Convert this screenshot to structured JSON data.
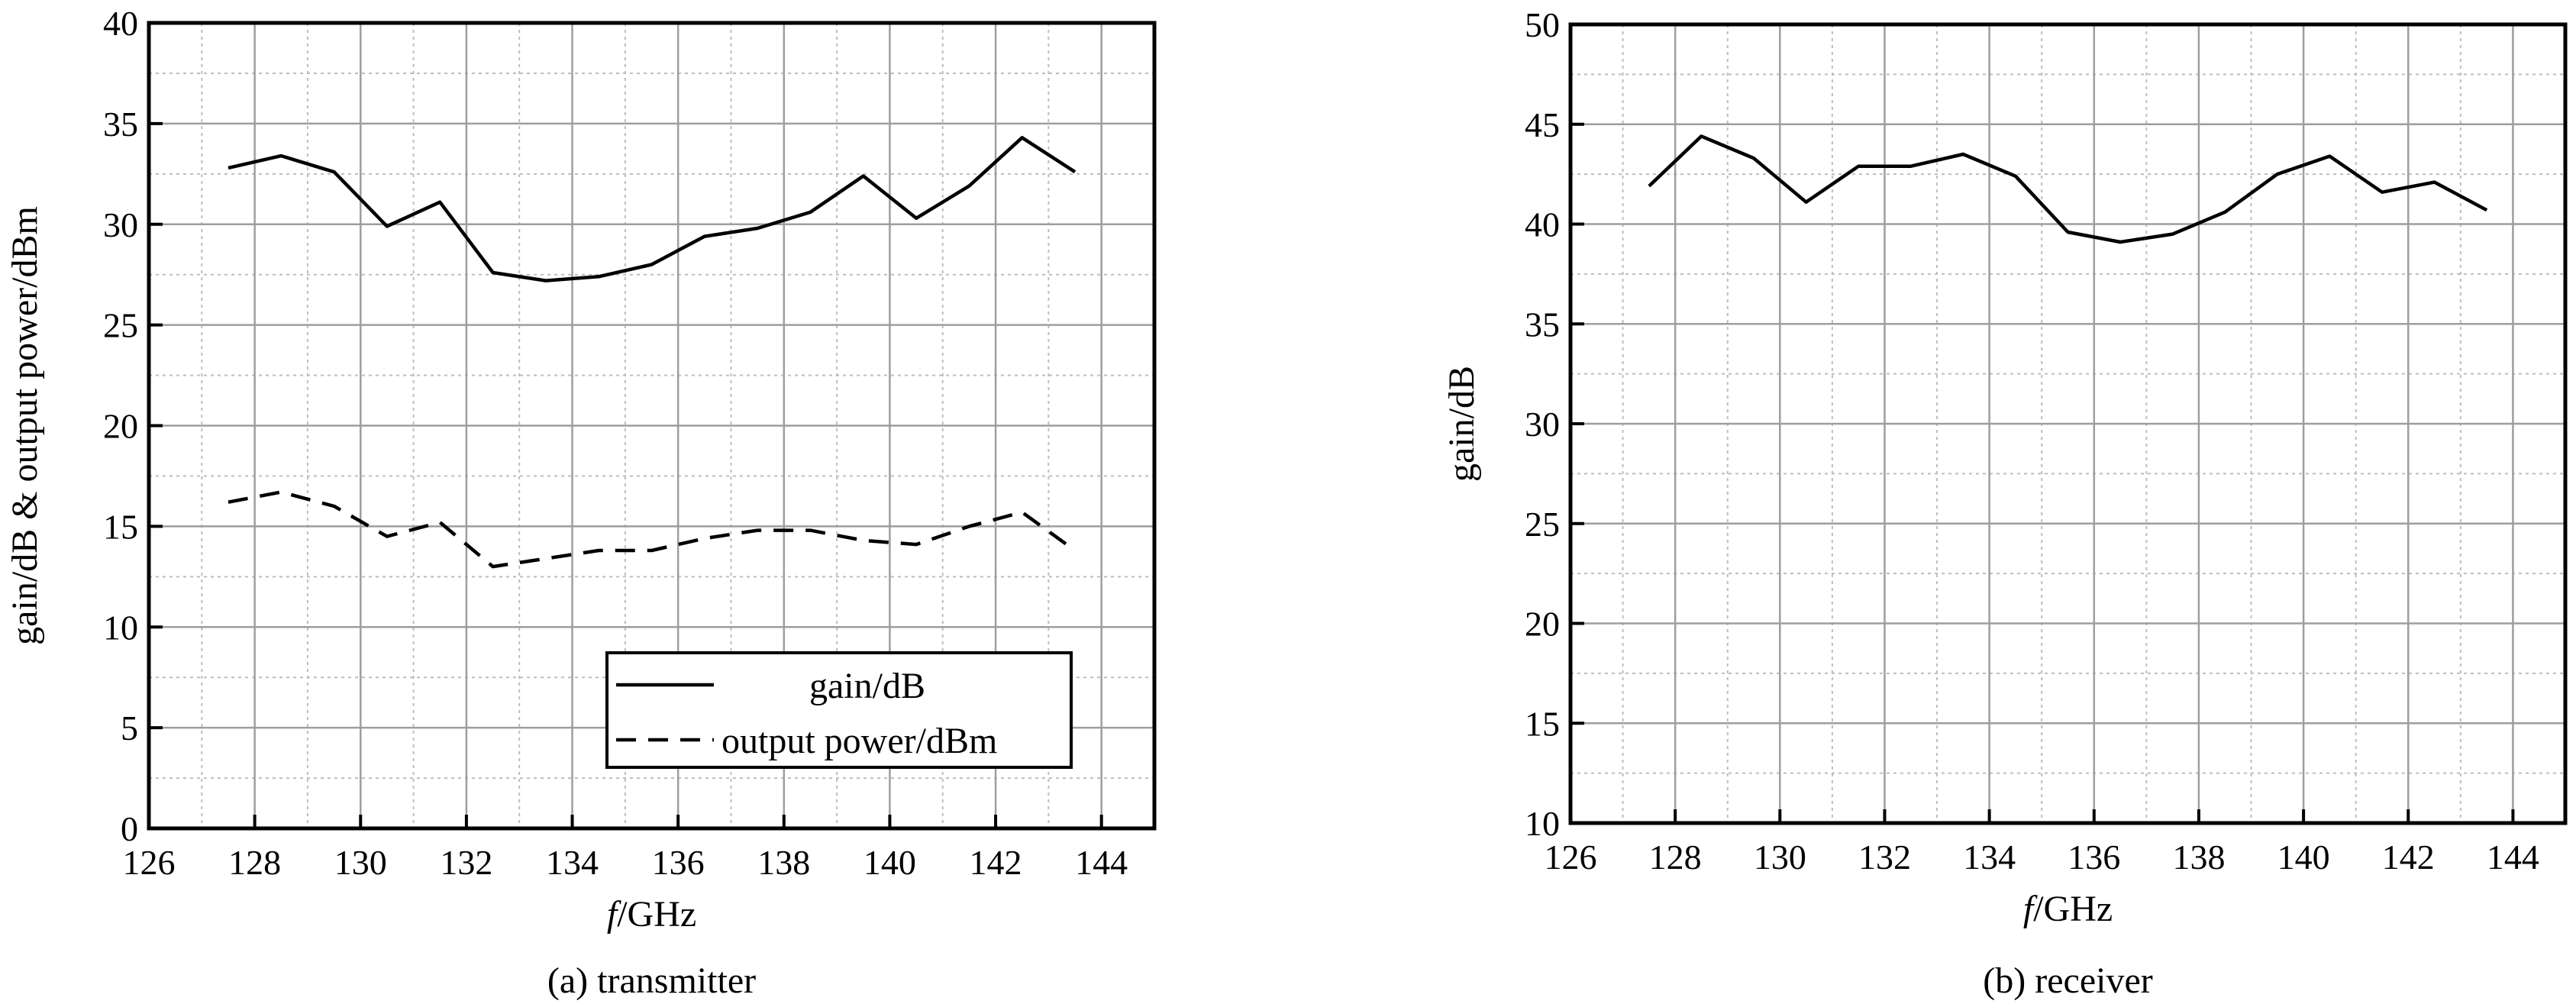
{
  "chart_data": [
    {
      "type": "line",
      "caption": "(a) transmitter",
      "xlabel_italic": "f",
      "xlabel_rest": "/GHz",
      "ylabel": "gain/dB & output power/dBm",
      "xlim": [
        126,
        145
      ],
      "ylim": [
        0,
        40
      ],
      "xticks": [
        126,
        128,
        130,
        132,
        134,
        136,
        138,
        140,
        142,
        144
      ],
      "yticks": [
        0,
        5,
        10,
        15,
        20,
        25,
        30,
        35,
        40
      ],
      "grid": true,
      "legend_position": "bottom-right",
      "series": [
        {
          "name": "gain/dB",
          "style": "solid",
          "x": [
            127.5,
            128.5,
            129.5,
            130.5,
            131.5,
            132.5,
            133.5,
            134.5,
            135.5,
            136.5,
            137.5,
            138.5,
            139.5,
            140.5,
            141.5,
            142.5,
            143.5
          ],
          "y": [
            32.8,
            33.4,
            32.6,
            29.9,
            31.1,
            27.6,
            27.2,
            27.4,
            28.0,
            29.4,
            29.8,
            30.6,
            32.4,
            30.3,
            31.9,
            34.3,
            32.6
          ]
        },
        {
          "name": "output power/dBm",
          "style": "dashed",
          "x": [
            127.5,
            128.5,
            129.5,
            130.5,
            131.5,
            132.5,
            133.5,
            134.5,
            135.5,
            136.5,
            137.5,
            138.5,
            139.5,
            140.5,
            141.5,
            142.5,
            143.5
          ],
          "y": [
            16.2,
            16.7,
            16.0,
            14.5,
            15.2,
            13.0,
            13.4,
            13.8,
            13.8,
            14.4,
            14.8,
            14.8,
            14.3,
            14.1,
            15.0,
            15.7,
            13.8
          ]
        }
      ]
    },
    {
      "type": "line",
      "caption": "(b) receiver",
      "xlabel_italic": "f",
      "xlabel_rest": "/GHz",
      "ylabel": "gain/dB",
      "xlim": [
        126,
        145
      ],
      "ylim": [
        10,
        50
      ],
      "xticks": [
        126,
        128,
        130,
        132,
        134,
        136,
        138,
        140,
        142,
        144
      ],
      "yticks": [
        10,
        15,
        20,
        25,
        30,
        35,
        40,
        45,
        50
      ],
      "grid": true,
      "series": [
        {
          "style": "solid",
          "x": [
            127.5,
            128.5,
            129.5,
            130.5,
            131.5,
            132.5,
            133.5,
            134.5,
            135.5,
            136.5,
            137.5,
            138.5,
            139.5,
            140.5,
            141.5,
            142.5,
            143.5
          ],
          "y": [
            41.9,
            44.4,
            43.3,
            41.1,
            42.9,
            42.9,
            43.5,
            42.4,
            39.6,
            39.1,
            39.5,
            40.6,
            42.5,
            43.4,
            41.6,
            42.1,
            40.7
          ]
        }
      ]
    }
  ]
}
